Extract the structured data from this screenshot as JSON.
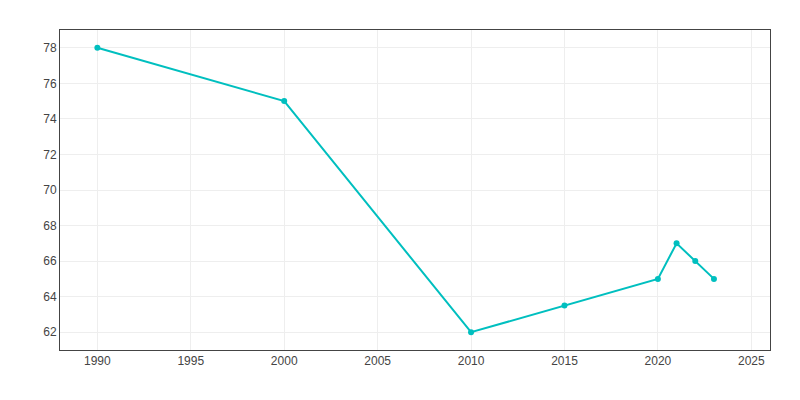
{
  "chart_data": {
    "type": "line",
    "x": [
      1990,
      2000,
      2010,
      2015,
      2020,
      2021,
      2022,
      2023
    ],
    "values": [
      78,
      75,
      62,
      63.5,
      65,
      67,
      66,
      65
    ],
    "color": "#00BFBF",
    "marker": "circle",
    "xlim": [
      1988,
      2026
    ],
    "ylim": [
      61,
      79
    ],
    "xticks": [
      1990,
      1995,
      2000,
      2005,
      2010,
      2015,
      2020,
      2025
    ],
    "yticks": [
      62,
      64,
      66,
      68,
      70,
      72,
      74,
      76,
      78
    ],
    "grid": true
  }
}
